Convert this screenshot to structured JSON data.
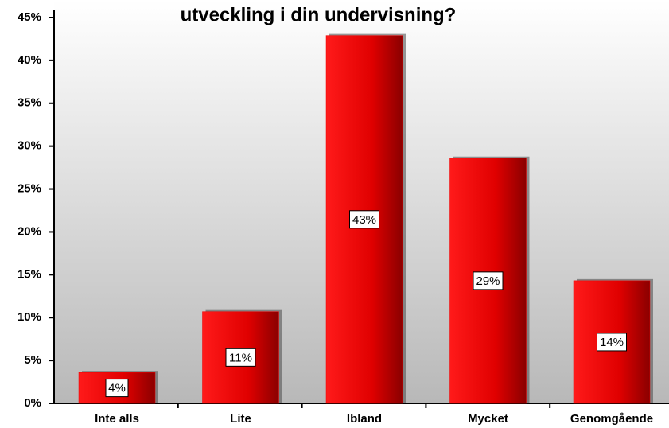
{
  "chart_data": {
    "type": "bar",
    "title": "utveckling i din undervisning?",
    "categories": [
      "Inte alls",
      "Lite",
      "Ibland",
      "Mycket",
      "Genomgående"
    ],
    "values": [
      3.6,
      10.7,
      42.9,
      28.6,
      14.3
    ],
    "value_labels": [
      "4%",
      "11%",
      "43%",
      "29%",
      "14%"
    ],
    "color": "#ee0000",
    "ylim": [
      0,
      45
    ],
    "yticks": [
      {
        "value": 0,
        "label": "0%"
      },
      {
        "value": 5,
        "label": "5%"
      },
      {
        "value": 10,
        "label": "10%"
      },
      {
        "value": 15,
        "label": "15%"
      },
      {
        "value": 20,
        "label": "20%"
      },
      {
        "value": 25,
        "label": "25%"
      },
      {
        "value": 30,
        "label": "30%"
      },
      {
        "value": 35,
        "label": "35%"
      },
      {
        "value": 40,
        "label": "40%"
      },
      {
        "value": 45,
        "label": "45%"
      }
    ]
  }
}
